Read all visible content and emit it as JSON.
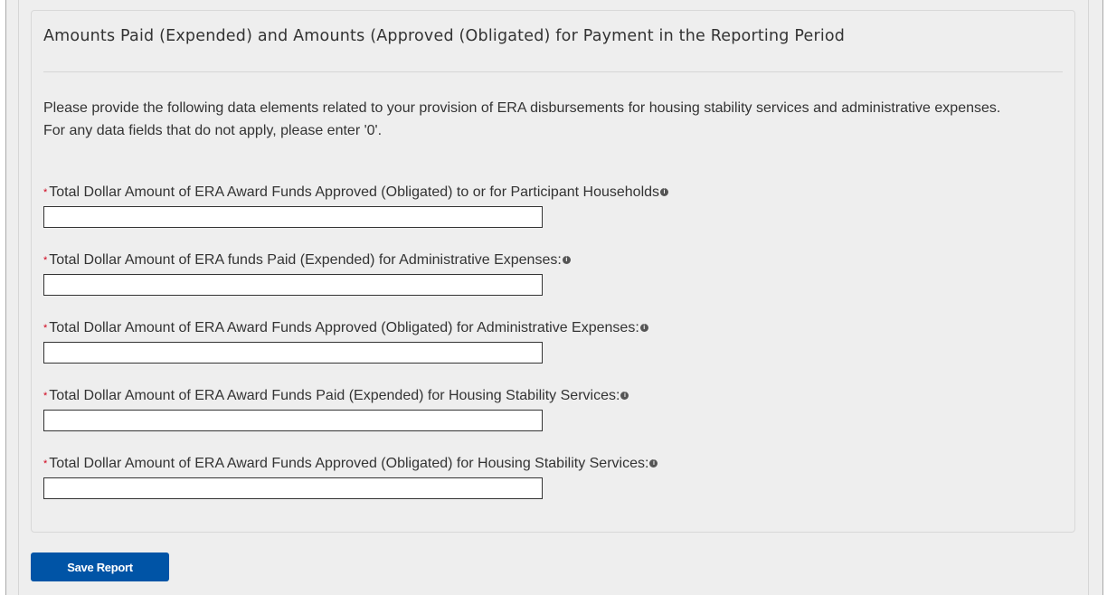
{
  "section": {
    "title": "Amounts Paid (Expended) and Amounts (Approved (Obligated) for Payment in the Reporting Period",
    "intro_line1": "Please provide the following data elements related to your provision of ERA disbursements for housing stability services and administrative expenses.",
    "intro_line2": "For any data fields that do not apply, please enter '0'."
  },
  "fields": [
    {
      "required": "*",
      "label": "Total Dollar Amount of ERA Award Funds Approved (Obligated) to or for Participant Households",
      "value": "",
      "icon": "info-icon"
    },
    {
      "required": "*",
      "label": "Total Dollar Amount of ERA funds Paid (Expended) for Administrative Expenses:",
      "value": "",
      "icon": "info-icon"
    },
    {
      "required": "*",
      "label": "Total Dollar Amount of ERA Award Funds Approved (Obligated) for Administrative Expenses:",
      "value": "",
      "icon": "info-icon"
    },
    {
      "required": "*",
      "label": "Total Dollar Amount of ERA Award Funds Paid (Expended) for Housing Stability Services:",
      "value": "",
      "icon": "info-icon"
    },
    {
      "required": "*",
      "label": "Total Dollar Amount of ERA Award Funds Approved (Obligated) for Housing Stability Services:",
      "value": "",
      "icon": "info-icon"
    }
  ],
  "actions": {
    "save_label": "Save Report"
  },
  "colors": {
    "primary": "#0054a6",
    "required": "#d0021b",
    "background": "#eeeeee"
  }
}
